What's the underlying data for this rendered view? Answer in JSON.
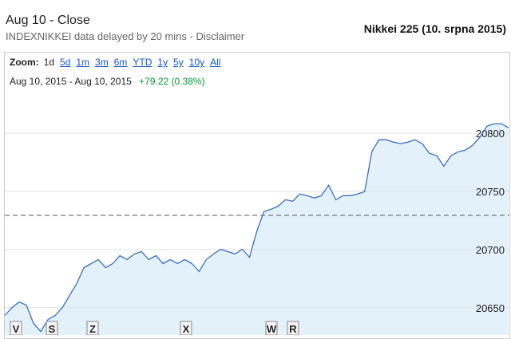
{
  "header": {
    "status": "Aug 10 - Close",
    "source": "INDEXNIKKEI data delayed by 20 mins - Disclaimer"
  },
  "caption": "Nikkei 225 (10. srpna 2015)",
  "zoom": {
    "label": "Zoom:",
    "options": [
      "1d",
      "5d",
      "1m",
      "3m",
      "6m",
      "YTD",
      "1y",
      "5y",
      "10y",
      "All"
    ],
    "selected": "1d"
  },
  "range": {
    "start": "Aug 10, 2015",
    "separator": "-",
    "end": "Aug 10, 2015",
    "change": "+79.22 (0.38%)"
  },
  "chart_data": {
    "type": "area",
    "color": "#3a6fc4",
    "fill": "#e3f1fb",
    "values": [
      20643.3,
      20650.1,
      20654.9,
      20652.2,
      20636.4,
      20629.5,
      20639.8,
      20643.3,
      20650.1,
      20660.4,
      20670.8,
      20684.5,
      20687.9,
      20691.4,
      20684.5,
      20687.9,
      20694.8,
      20691.4,
      20696.2,
      20698.2,
      20691.4,
      20694.8,
      20687.9,
      20691.4,
      20687.9,
      20691.4,
      20687.9,
      20681.1,
      20691.4,
      20696.2,
      20700.3,
      20698.2,
      20696.2,
      20700.3,
      20693.4,
      20715.4,
      20732.6,
      20734.7,
      20737.4,
      20742.9,
      20741.6,
      20747.8,
      20746.4,
      20744.3,
      20746.4,
      20755.3,
      20742.9,
      20746.4,
      20746.4,
      20747.8,
      20749.8,
      20784.2,
      20794.5,
      20794.5,
      20792.4,
      20791.1,
      20792.4,
      20794.5,
      20791.1,
      20782.8,
      20780.8,
      20771.8,
      20780.8,
      20784.2,
      20785.6,
      20789.7,
      20796.6,
      20806.2,
      20808.3,
      20808.3,
      20804.8
    ],
    "previous_close": 20729.47,
    "ylim": [
      20626.5,
      20831
    ],
    "yticks": [
      20650,
      20700,
      20750,
      20800
    ],
    "grid": true,
    "flags": [
      "V",
      "S",
      "Z",
      "X",
      "W",
      "R"
    ]
  }
}
